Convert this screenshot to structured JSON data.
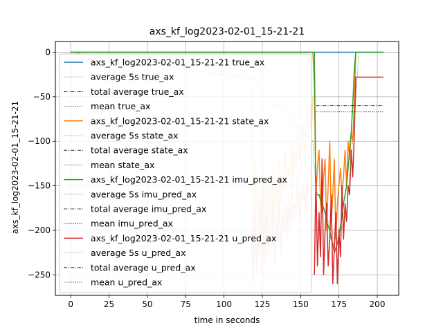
{
  "chart_data": {
    "type": "line",
    "title": "axs_kf_log2023-02-01_15-21-21",
    "xlabel": "time in seconds",
    "ylabel": "axs_kf_log2023-02-01_15-21-21",
    "xlim": [
      -10,
      214
    ],
    "ylim": [
      -273,
      12
    ],
    "grid": true,
    "legend_position": "upper-left",
    "x_ticks": [
      0,
      25,
      50,
      75,
      100,
      125,
      150,
      175,
      200
    ],
    "x_tick_labels": [
      "0",
      "25",
      "50",
      "75",
      "100",
      "125",
      "150",
      "175",
      "200"
    ],
    "y_ticks": [
      0,
      -50,
      -100,
      -150,
      -200,
      -250
    ],
    "y_tick_labels": [
      "0",
      "−50",
      "−100",
      "−150",
      "−200",
      "−250"
    ],
    "legend": [
      {
        "label": "axs_kf_log2023-02-01_15-21-21 true_ax",
        "color": "#1f77b4",
        "style": "solid"
      },
      {
        "label": "average 5s true_ax",
        "color": "#2ca02c",
        "style": "dotted"
      },
      {
        "label": "total average true_ax",
        "color": "#000000",
        "style": "dashdot"
      },
      {
        "label": "mean true_ax",
        "color": "#000000",
        "style": "dotted"
      },
      {
        "label": "axs_kf_log2023-02-01_15-21-21 state_ax",
        "color": "#ff7f0e",
        "style": "solid"
      },
      {
        "label": "average 5s state_ax",
        "color": "#2ca02c",
        "style": "dotted"
      },
      {
        "label": "total average state_ax",
        "color": "#000000",
        "style": "dashdot"
      },
      {
        "label": "mean state_ax",
        "color": "#000000",
        "style": "dotted"
      },
      {
        "label": "axs_kf_log2023-02-01_15-21-21 imu_pred_ax",
        "color": "#2ca02c",
        "style": "solid"
      },
      {
        "label": "average 5s imu_pred_ax",
        "color": "#2ca02c",
        "style": "dotted"
      },
      {
        "label": "total average imu_pred_ax",
        "color": "#000000",
        "style": "dashdot"
      },
      {
        "label": "mean imu_pred_ax",
        "color": "#000000",
        "style": "dotted"
      },
      {
        "label": "axs_kf_log2023-02-01_15-21-21 u_pred_ax",
        "color": "#d62728",
        "style": "solid"
      },
      {
        "label": "average 5s u_pred_ax",
        "color": "#2ca02c",
        "style": "dotted"
      },
      {
        "label": "total average u_pred_ax",
        "color": "#000000",
        "style": "dashdot"
      },
      {
        "label": "mean u_pred_ax",
        "color": "#000000",
        "style": "dotted"
      }
    ],
    "series": [
      {
        "color": "#1f77b4",
        "x": [
          0,
          120,
          160,
          185,
          204
        ],
        "y": [
          0,
          0,
          0,
          0,
          0
        ]
      },
      {
        "color": "#ff7f0e",
        "x": [
          0,
          158,
          159,
          160,
          161,
          162,
          163,
          164,
          165,
          166,
          167,
          168,
          169,
          170,
          171,
          172,
          173,
          174,
          175,
          176,
          177,
          178,
          179,
          180,
          181,
          182,
          183,
          184,
          185,
          186
        ],
        "y": [
          0,
          0,
          -40,
          -160,
          -130,
          -110,
          -170,
          -180,
          -140,
          -120,
          -200,
          -150,
          -100,
          -190,
          -160,
          -120,
          -210,
          -170,
          -150,
          -130,
          -160,
          -140,
          -110,
          -150,
          -100,
          -120,
          -90,
          -100,
          -60,
          0
        ]
      },
      {
        "color": "#2ca02c",
        "x": [
          0,
          150,
          159,
          160,
          161,
          162,
          163,
          164,
          165,
          166,
          167,
          168,
          169,
          170,
          171,
          172,
          173,
          174,
          175,
          176,
          177,
          178,
          179,
          180,
          181,
          182,
          183,
          184,
          185,
          186,
          204
        ],
        "y": [
          0,
          0,
          0,
          -160,
          -160,
          -160,
          -165,
          -170,
          -175,
          -180,
          -190,
          -195,
          -200,
          -210,
          -215,
          -225,
          -220,
          -215,
          -205,
          -195,
          -185,
          -170,
          -160,
          -150,
          -130,
          -110,
          -90,
          -60,
          -20,
          0,
          0
        ]
      },
      {
        "color": "#d62728",
        "x": [
          159,
          160,
          161,
          162,
          163,
          164,
          165,
          166,
          167,
          168,
          169,
          170,
          171,
          172,
          173,
          174,
          175,
          176,
          177,
          178,
          179,
          180,
          181,
          182,
          183,
          184,
          185,
          186,
          204
        ],
        "y": [
          -250,
          -140,
          -240,
          -180,
          -230,
          -120,
          -250,
          -200,
          -170,
          -240,
          -210,
          -160,
          -260,
          -220,
          -180,
          -260,
          -200,
          -230,
          -150,
          -210,
          -170,
          -190,
          -150,
          -160,
          -110,
          -140,
          -95,
          -28,
          -28
        ]
      },
      {
        "color": "#ffdab9",
        "x": [
          118,
          119,
          120,
          121,
          122,
          123,
          124,
          125,
          126,
          127,
          128,
          129,
          130,
          131,
          132,
          133,
          134,
          135,
          136,
          137,
          138,
          139,
          140,
          141,
          142,
          143,
          144,
          145,
          146,
          147,
          148,
          149,
          150,
          151,
          152,
          153,
          154,
          155,
          156,
          157,
          158
        ],
        "y": [
          -40,
          -250,
          -120,
          -240,
          -140,
          -200,
          -160,
          -230,
          -130,
          -220,
          -150,
          -210,
          -140,
          -200,
          -130,
          -190,
          -150,
          -180,
          -120,
          -170,
          -140,
          -160,
          -110,
          -150,
          -130,
          -140,
          -100,
          -150,
          -110,
          -130,
          -90,
          -120,
          -100,
          -110,
          -80,
          -130,
          -60,
          -100,
          -70,
          -90,
          -50
        ]
      },
      {
        "color": "#f4c7c3",
        "x": [
          118,
          119,
          120,
          121,
          122,
          123,
          124,
          125,
          126,
          127,
          128,
          129,
          130,
          131,
          132,
          133,
          134,
          135,
          136,
          137,
          138,
          139,
          140,
          141,
          142,
          143,
          144,
          145,
          146,
          147,
          148,
          149,
          150,
          151,
          152,
          153,
          154,
          155,
          156,
          157
        ],
        "y": [
          -200,
          -260,
          -180,
          -250,
          -210,
          -230,
          -170,
          -260,
          -190,
          -240,
          -180,
          -230,
          -200,
          -220,
          -170,
          -240,
          -190,
          -210,
          -160,
          -230,
          -180,
          -200,
          -170,
          -210,
          -160,
          -200,
          -150,
          -190,
          -170,
          -180,
          -140,
          -190,
          -160,
          -170,
          -150,
          -180,
          -140,
          -160,
          -150,
          -170
        ]
      }
    ],
    "avg_5s": {
      "color": "#2ca02c",
      "x": [
        0,
        118,
        158,
        160,
        165,
        170,
        175,
        180,
        185,
        188
      ],
      "y": [
        0,
        -30,
        -100,
        -155,
        -175,
        -200,
        -210,
        -180,
        -80,
        0
      ]
    },
    "hlines": [
      {
        "y": -60,
        "x_from": 160,
        "x_to": 204,
        "color": "#000000",
        "style": "dashdot"
      },
      {
        "y": -67,
        "x_from": 160,
        "x_to": 204,
        "color": "#000000",
        "style": "dotted"
      },
      {
        "y": -60,
        "x_from": 118,
        "x_to": 160,
        "color": "#cccccc",
        "style": "dashed"
      }
    ]
  }
}
